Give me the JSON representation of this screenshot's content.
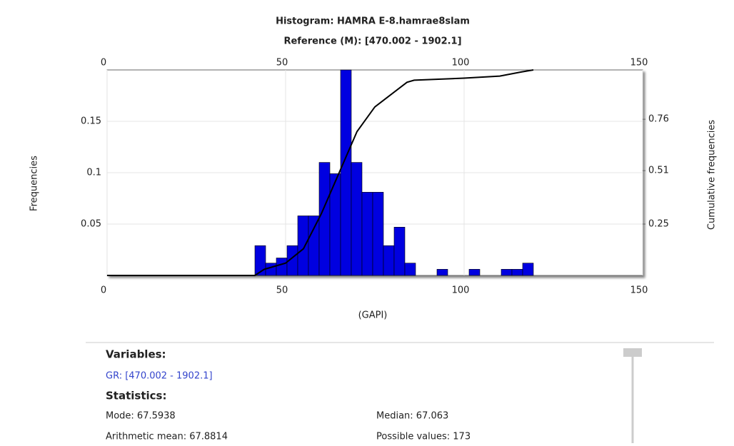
{
  "chart_data": {
    "type": "histogram",
    "title": "Histogram: HAMRA E-8.hamrae8slam",
    "subtitle": "Reference (M): [470.002 - 1902.1]",
    "x_label": "(GAPI)",
    "y_label": "Frequencies",
    "y2_label": "Cumulative frequencies",
    "bins": [
      41.4,
      44.4,
      47.4,
      50.4,
      53.4,
      56.4,
      59.4,
      62.4,
      65.4,
      68.4,
      71.4,
      74.4,
      77.4,
      80.4,
      83.4,
      86.4,
      89.4,
      92.4,
      95.4,
      98.4,
      101.4,
      104.4,
      107.4,
      110.4,
      113.4,
      116.4,
      119.4
    ],
    "values": [
      0.029,
      0.012,
      0.017,
      0.029,
      0.058,
      0.058,
      0.11,
      0.099,
      0.2,
      0.11,
      0.081,
      0.081,
      0.029,
      0.047,
      0.012,
      0,
      0,
      0.006,
      0,
      0,
      0.006,
      0,
      0,
      0.006,
      0.006,
      0.012
    ],
    "color": "#0000e0",
    "cumulative": {
      "axis": "y2",
      "color": "#000000",
      "x": [
        0,
        41.4,
        44,
        50,
        55,
        60,
        65,
        70,
        75,
        78,
        84,
        86,
        100,
        110,
        116,
        119.4
      ],
      "values": [
        0,
        0,
        0.03,
        0.06,
        0.13,
        0.3,
        0.5,
        0.7,
        0.82,
        0.86,
        0.94,
        0.95,
        0.96,
        0.97,
        0.99,
        1.0
      ]
    },
    "xlim": [
      0,
      150
    ],
    "xticks": [
      0,
      50,
      100,
      150
    ],
    "ylim": [
      0,
      0.2
    ],
    "yticks": [
      0.05,
      0.1,
      0.15
    ],
    "y2lim": [
      0,
      1
    ],
    "y2ticks": [
      0.25,
      0.51,
      0.76
    ],
    "grid": true
  },
  "panel": {
    "variables_heading": "Variables:",
    "variable": "GR: [470.002 - 1902.1]",
    "statistics_heading": "Statistics:",
    "stats": [
      "Mode: 67.5938",
      "Median: 67.063",
      "Arithmetic mean: 67.8814",
      "Possible values: 173"
    ]
  }
}
